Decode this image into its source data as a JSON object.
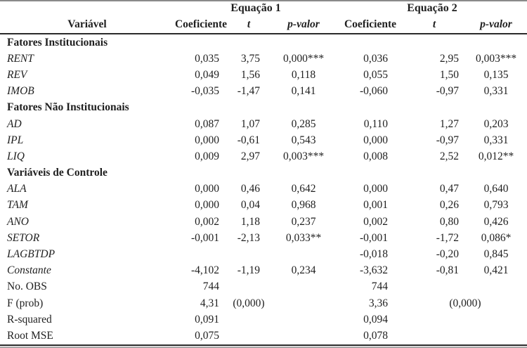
{
  "page": {
    "background": "#ffffff",
    "text_color": "#1f1f1f",
    "top_rule_color": "#8a8a8a",
    "header_rule_color": "#2b2b2b",
    "bottom_rule_colors": [
      "#2b2b2b",
      "#a8a8a8"
    ]
  },
  "table": {
    "group_headers": [
      "Equação 1",
      "Equação 2"
    ],
    "column_headers": {
      "variable": "Variável",
      "coef": "Coeficiente",
      "t": "t",
      "p": "p-valor"
    },
    "rows": [
      {
        "type": "section",
        "label": "Fatores Institucionais"
      },
      {
        "type": "data",
        "label": "RENT",
        "eq1": {
          "coef": "0,035",
          "t": "3,75",
          "p": "0,000***"
        },
        "eq2": {
          "coef": "0,036",
          "t": "2,95",
          "p": "0,003***"
        }
      },
      {
        "type": "data",
        "label": "REV",
        "eq1": {
          "coef": "0,049",
          "t": "1,56",
          "p": "0,118"
        },
        "eq2": {
          "coef": "0,055",
          "t": "1,50",
          "p": "0,135"
        }
      },
      {
        "type": "data",
        "label": "IMOB",
        "eq1": {
          "coef": "-0,035",
          "t": "-1,47",
          "p": "0,141"
        },
        "eq2": {
          "coef": "-0,060",
          "t": "-0,97",
          "p": "0,331"
        }
      },
      {
        "type": "section",
        "label": "Fatores Não Institucionais"
      },
      {
        "type": "data",
        "label": "AD",
        "eq1": {
          "coef": "0,087",
          "t": "1,07",
          "p": "0,285"
        },
        "eq2": {
          "coef": "0,110",
          "t": "1,27",
          "p": "0,203"
        }
      },
      {
        "type": "data",
        "label": "IPL",
        "eq1": {
          "coef": "0,000",
          "t": "-0,61",
          "p": "0,543"
        },
        "eq2": {
          "coef": "0,000",
          "t": "-0,97",
          "p": "0,331"
        }
      },
      {
        "type": "data",
        "label": "LIQ",
        "eq1": {
          "coef": "0,009",
          "t": "2,97",
          "p": "0,003***"
        },
        "eq2": {
          "coef": "0,008",
          "t": "2,52",
          "p": "0,012**"
        }
      },
      {
        "type": "section",
        "label": "Variáveis de Controle"
      },
      {
        "type": "data",
        "label": "ALA",
        "eq1": {
          "coef": "0,000",
          "t": "0,46",
          "p": "0,642"
        },
        "eq2": {
          "coef": "0,000",
          "t": "0,47",
          "p": "0,640"
        }
      },
      {
        "type": "data",
        "label": "TAM",
        "eq1": {
          "coef": "0,000",
          "t": "0,04",
          "p": "0,968"
        },
        "eq2": {
          "coef": "0,001",
          "t": "0,26",
          "p": "0,793"
        }
      },
      {
        "type": "data",
        "label": "ANO",
        "eq1": {
          "coef": "0,002",
          "t": "1,18",
          "p": "0,237"
        },
        "eq2": {
          "coef": "0,002",
          "t": "0,80",
          "p": "0,426"
        }
      },
      {
        "type": "data",
        "label": "SETOR",
        "eq1": {
          "coef": "-0,001",
          "t": "-2,13",
          "p": "0,033**"
        },
        "eq2": {
          "coef": "-0,001",
          "t": "-1,72",
          "p": "0,086*"
        }
      },
      {
        "type": "data",
        "label": "LAGBTDP",
        "eq1": {
          "coef": "",
          "t": "",
          "p": ""
        },
        "eq2": {
          "coef": "-0,018",
          "t": "-0,20",
          "p": "0,845"
        }
      },
      {
        "type": "data",
        "label": "Constante",
        "eq1": {
          "coef": "-4,102",
          "t": "-1,19",
          "p": "0,234"
        },
        "eq2": {
          "coef": "-3,632",
          "t": "-0,81",
          "p": "0,421"
        }
      },
      {
        "type": "stat",
        "label": "No. OBS",
        "eq1": {
          "coef": "744",
          "t": "",
          "p": ""
        },
        "eq2": {
          "coef": "744",
          "t": "",
          "p": ""
        }
      },
      {
        "type": "stat",
        "label": "F (prob)",
        "eq1": {
          "coef": "4,31",
          "t": "(0,000)",
          "p": ""
        },
        "eq2": {
          "coef": "3,36",
          "tp_span": "(0,000)"
        }
      },
      {
        "type": "stat",
        "label": "R-squared",
        "eq1": {
          "coef": "0,091",
          "t": "",
          "p": ""
        },
        "eq2": {
          "coef": "0,094",
          "t": "",
          "p": ""
        }
      },
      {
        "type": "stat",
        "label": "Root MSE",
        "eq1": {
          "coef": "0,075",
          "t": "",
          "p": ""
        },
        "eq2": {
          "coef": "0,078",
          "t": "",
          "p": ""
        }
      }
    ]
  }
}
